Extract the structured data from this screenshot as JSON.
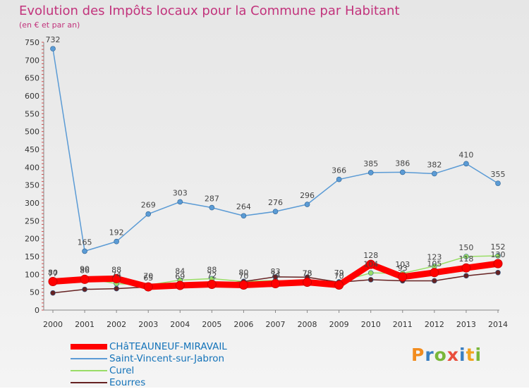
{
  "title": "Evolution des Impôts locaux pour la Commune par Habitant",
  "subtitle": "(en € et par an)",
  "logo": "Proxiti",
  "chart_data": {
    "type": "line",
    "x": [
      "2000",
      "2001",
      "2002",
      "2003",
      "2004",
      "2005",
      "2006",
      "2007",
      "2008",
      "2009",
      "2010",
      "2011",
      "2012",
      "2013",
      "2014"
    ],
    "ylim": [
      0,
      750
    ],
    "yticks": [
      0,
      50,
      100,
      150,
      200,
      250,
      300,
      350,
      400,
      450,
      500,
      550,
      600,
      650,
      700,
      750
    ],
    "grid": false,
    "legend_position": "bottom-left",
    "series": [
      {
        "name": "CHâTEAUNEUF-MIRAVAIL",
        "color": "#ff0000",
        "width": 9,
        "values": [
          80,
          86,
          88,
          65,
          69,
          72,
          70,
          74,
          78,
          70,
          128,
          93,
          105,
          118,
          130
        ],
        "show_labels": true
      },
      {
        "name": "Saint-Vincent-sur-Jabron",
        "color": "#5b9bd5",
        "width": 1.5,
        "values": [
          732,
          165,
          192,
          269,
          303,
          287,
          264,
          276,
          296,
          366,
          385,
          386,
          382,
          410,
          355
        ],
        "show_labels": true
      },
      {
        "name": "Curel",
        "color": "#99dd66",
        "width": 1.5,
        "values": [
          77,
          90,
          74,
          70,
          84,
          88,
          80,
          83,
          78,
          79,
          104,
          103,
          123,
          150,
          152
        ],
        "show_labels": true
      },
      {
        "name": "Eourres",
        "color": "#662222",
        "width": 1.5,
        "values": [
          48,
          58,
          60,
          65,
          68,
          70,
          80,
          93,
          92,
          78,
          85,
          82,
          82,
          96,
          105
        ],
        "show_labels": false
      }
    ]
  }
}
